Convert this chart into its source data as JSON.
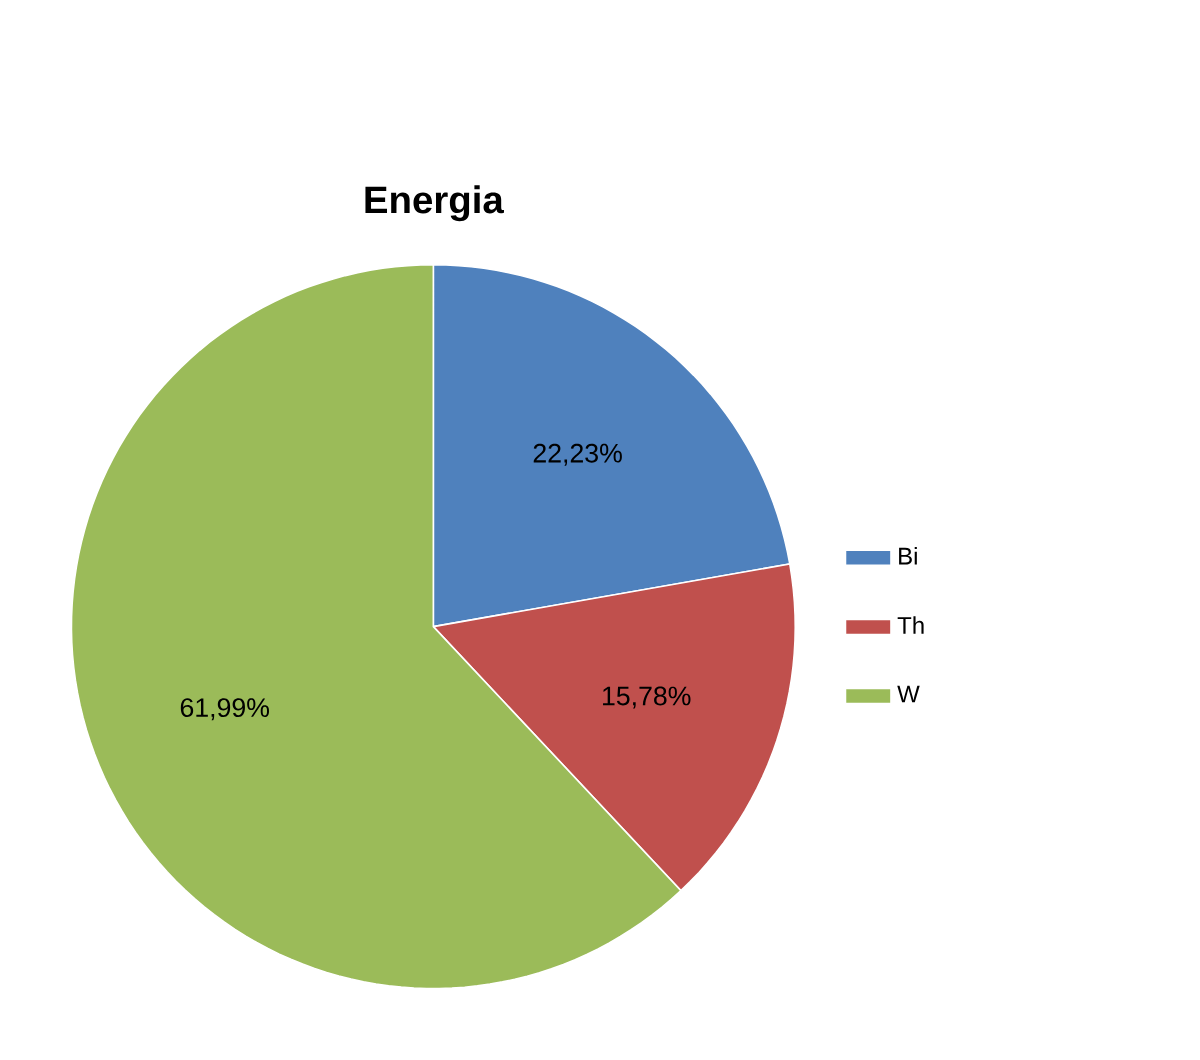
{
  "chart_data": {
    "type": "pie",
    "title": "Energia",
    "categories": [
      "Bi",
      "Th",
      "W"
    ],
    "values": [
      22.23,
      15.78,
      61.99
    ],
    "value_labels": [
      "22,23%",
      "15,78%",
      "61,99%"
    ],
    "colors": [
      "#4f81bd",
      "#c0504d",
      "#9bbb59"
    ],
    "legend": "right"
  }
}
